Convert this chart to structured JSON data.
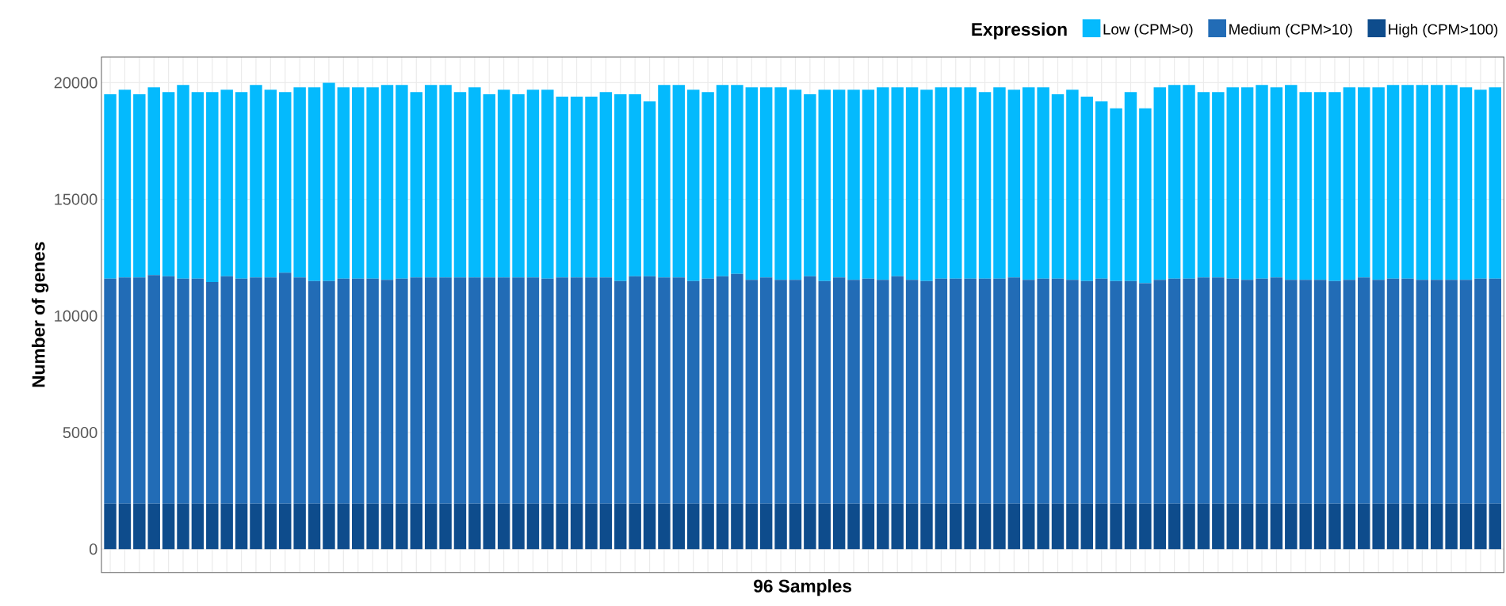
{
  "chart_data": {
    "type": "bar",
    "stacked": true,
    "xlabel": "96 Samples",
    "ylabel": "Number of genes",
    "legend_title": "Expression",
    "legend": "top right",
    "grid": true,
    "categories": [
      null,
      null,
      null,
      null,
      null,
      null,
      null,
      null,
      null,
      null,
      null,
      null,
      null,
      null,
      null,
      null,
      null,
      null,
      null,
      null,
      null,
      null,
      null,
      null,
      null,
      null,
      null,
      null,
      null,
      null,
      null,
      null,
      null,
      null,
      null,
      null,
      null,
      null,
      null,
      null,
      null,
      null,
      null,
      null,
      null,
      null,
      null,
      null,
      null,
      null,
      null,
      null,
      null,
      null,
      null,
      null,
      null,
      null,
      null,
      null,
      null,
      null,
      null,
      null,
      null,
      null,
      null,
      null,
      null,
      null,
      null,
      null,
      null,
      null,
      null,
      null,
      null,
      null,
      null,
      null,
      null,
      null,
      null,
      null,
      null,
      null,
      null,
      null,
      null,
      null,
      null,
      null,
      null,
      null,
      null,
      null
    ],
    "ylim": [
      -1000,
      21100
    ],
    "yticks": [
      0,
      5000,
      10000,
      15000,
      20000
    ],
    "series": [
      {
        "name": "High (CPM>100)",
        "color": "#0e4c8c",
        "values": [
          1950,
          1950,
          1950,
          1950,
          1950,
          1950,
          1950,
          1950,
          1950,
          1950,
          1950,
          1950,
          1950,
          1950,
          1950,
          1950,
          1950,
          1950,
          1950,
          1950,
          1950,
          1950,
          1950,
          1950,
          1950,
          1950,
          1950,
          1950,
          1950,
          1950,
          1950,
          1950,
          1950,
          1950,
          1950,
          1950,
          1950,
          1950,
          1950,
          1950,
          1950,
          1950,
          1950,
          1950,
          1950,
          1950,
          1950,
          1950,
          1950,
          1950,
          1950,
          1950,
          1950,
          1950,
          1950,
          1950,
          1950,
          1950,
          1950,
          1950,
          1950,
          1950,
          1950,
          1950,
          1950,
          1950,
          1950,
          1950,
          1950,
          1950,
          1950,
          1950,
          1950,
          1950,
          1950,
          1950,
          1950,
          1950,
          1950,
          1950,
          1950,
          1950,
          1950,
          1950,
          1950,
          1950,
          1950,
          1950,
          1950,
          1950,
          1950,
          1950,
          1950,
          1950,
          1950,
          1950
        ]
      },
      {
        "name": "Medium (CPM>10)",
        "color": "#226cb6",
        "values": [
          9650,
          9700,
          9700,
          9800,
          9750,
          9650,
          9650,
          9500,
          9750,
          9650,
          9700,
          9700,
          9900,
          9700,
          9550,
          9550,
          9650,
          9650,
          9650,
          9600,
          9650,
          9700,
          9700,
          9700,
          9700,
          9700,
          9700,
          9700,
          9700,
          9700,
          9650,
          9700,
          9700,
          9700,
          9700,
          9550,
          9750,
          9750,
          9700,
          9700,
          9550,
          9650,
          9750,
          9850,
          9600,
          9700,
          9600,
          9600,
          9750,
          9550,
          9700,
          9600,
          9650,
          9600,
          9750,
          9600,
          9550,
          9650,
          9650,
          9650,
          9650,
          9650,
          9700,
          9600,
          9650,
          9650,
          9600,
          9550,
          9650,
          9550,
          9550,
          9450,
          9600,
          9650,
          9650,
          9700,
          9700,
          9650,
          9600,
          9650,
          9700,
          9600,
          9600,
          9600,
          9550,
          9600,
          9700,
          9600,
          9650,
          9650,
          9600,
          9600,
          9600,
          9600,
          9650,
          9650
        ]
      },
      {
        "name": "Low (CPM>0)",
        "color": "#04bafd",
        "values": [
          7900,
          8050,
          7850,
          8050,
          7900,
          8300,
          8000,
          8150,
          8000,
          8000,
          8250,
          8050,
          7750,
          8150,
          8300,
          8500,
          8200,
          8200,
          8200,
          8350,
          8300,
          7950,
          8250,
          8250,
          7950,
          8150,
          7850,
          8050,
          7850,
          8050,
          8100,
          7750,
          7750,
          7750,
          7950,
          8000,
          7800,
          7500,
          8250,
          8250,
          8200,
          8000,
          8200,
          8100,
          8250,
          8150,
          8250,
          8150,
          7800,
          8200,
          8050,
          8150,
          8100,
          8250,
          8100,
          8250,
          8200,
          8200,
          8200,
          8200,
          8000,
          8200,
          8050,
          8250,
          8200,
          7900,
          8150,
          7900,
          7600,
          7400,
          8100,
          7500,
          8250,
          8300,
          8300,
          7950,
          7950,
          8200,
          8250,
          8300,
          8150,
          8350,
          8050,
          8050,
          8100,
          8250,
          8150,
          8250,
          8300,
          8300,
          8350,
          8350,
          8350,
          8250,
          8100,
          8200
        ]
      }
    ]
  }
}
